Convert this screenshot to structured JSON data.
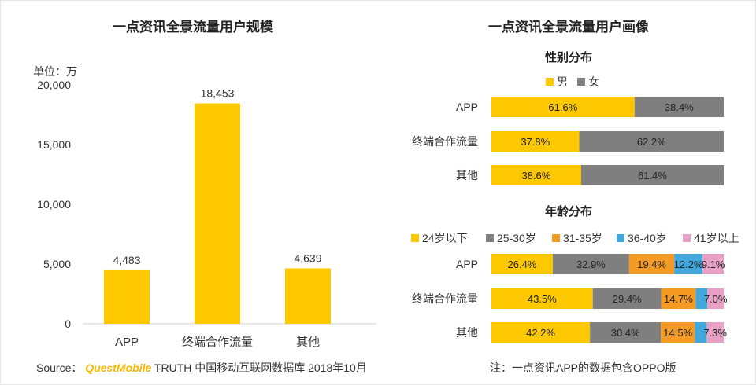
{
  "chart_data": [
    {
      "type": "bar",
      "title": "一点资讯全景流量用户规模",
      "unit_label": "单位：万",
      "categories": [
        "APP",
        "终端合作流量",
        "其他"
      ],
      "values": [
        4483,
        18453,
        4639
      ],
      "value_labels": [
        "4,483",
        "18,453",
        "4,639"
      ],
      "ylim": [
        0,
        20000
      ],
      "yticks": [
        0,
        5000,
        10000,
        15000,
        20000
      ],
      "ytick_labels": [
        "0",
        "5,000",
        "10,000",
        "15,000",
        "20,000"
      ],
      "bar_color": "#fdc800"
    },
    {
      "type": "bar",
      "orientation": "horizontal",
      "stacked": true,
      "title": "一点资讯全景流量用户画像",
      "subtitle": "性别分布",
      "categories": [
        "APP",
        "终端合作流量",
        "其他"
      ],
      "legend_position": "top",
      "series": [
        {
          "name": "男",
          "color": "#fdc800",
          "values": [
            61.6,
            37.8,
            38.6
          ],
          "labels": [
            "61.6%",
            "37.8%",
            "38.6%"
          ]
        },
        {
          "name": "女",
          "color": "#7f7f7f",
          "values": [
            38.4,
            62.2,
            61.4
          ],
          "labels": [
            "38.4%",
            "62.2%",
            "61.4%"
          ]
        }
      ]
    },
    {
      "type": "bar",
      "orientation": "horizontal",
      "stacked": true,
      "subtitle": "年龄分布",
      "categories": [
        "APP",
        "终端合作流量",
        "其他"
      ],
      "legend_position": "top",
      "series": [
        {
          "name": "24岁以下",
          "color": "#fdc800",
          "values": [
            26.4,
            43.5,
            42.2
          ],
          "labels": [
            "26.4%",
            "43.5%",
            "42.2%"
          ]
        },
        {
          "name": "25-30岁",
          "color": "#7f7f7f",
          "values": [
            32.9,
            29.4,
            30.4
          ],
          "labels": [
            "32.9%",
            "29.4%",
            "30.4%"
          ]
        },
        {
          "name": "31-35岁",
          "color": "#f59a23",
          "values": [
            19.4,
            14.7,
            14.5
          ],
          "labels": [
            "19.4%",
            "14.7%",
            "14.5%"
          ]
        },
        {
          "name": "36-40岁",
          "color": "#42a8dc",
          "values": [
            12.2,
            5.1,
            5.1
          ],
          "labels": [
            "12.2%",
            "",
            ""
          ]
        },
        {
          "name": "41岁以上",
          "color": "#e8a0c4",
          "values": [
            9.1,
            7.0,
            7.3
          ],
          "labels": [
            "9.1%",
            "7.0%",
            "7.3%"
          ]
        }
      ]
    }
  ],
  "footer": {
    "source_prefix": "Source：",
    "source_brand": "QuestMobile",
    "source_text": " TRUTH 中国移动互联网数据库 2018年10月",
    "note": "注：一点资讯APP的数据包含OPPO版"
  }
}
